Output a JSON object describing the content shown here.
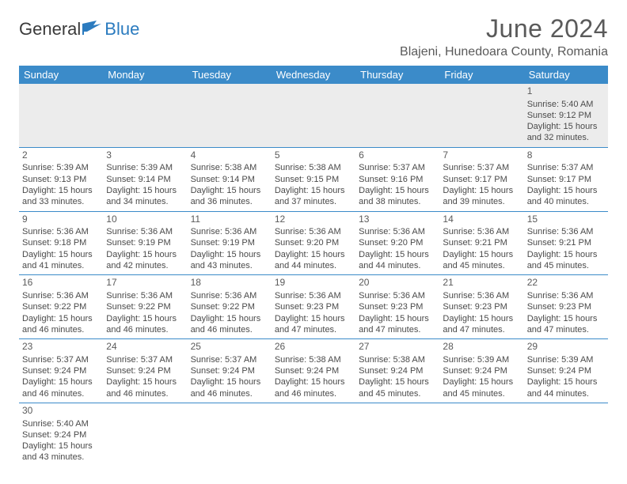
{
  "header": {
    "logo_general": "General",
    "logo_blue": "Blue",
    "month_title": "June 2024",
    "location": "Blajeni, Hunedoara County, Romania"
  },
  "colors": {
    "header_bg": "#3b8bc9",
    "header_text": "#ffffff",
    "text": "#4a4a4a",
    "title_text": "#5a5a5a",
    "first_row_bg": "#ececec",
    "row_border": "#3b8bc9",
    "logo_blue": "#2b7bbf"
  },
  "weekdays": [
    "Sunday",
    "Monday",
    "Tuesday",
    "Wednesday",
    "Thursday",
    "Friday",
    "Saturday"
  ],
  "weeks": [
    [
      null,
      null,
      null,
      null,
      null,
      null,
      {
        "day": "1",
        "sunrise": "Sunrise: 5:40 AM",
        "sunset": "Sunset: 9:12 PM",
        "dl1": "Daylight: 15 hours",
        "dl2": "and 32 minutes."
      }
    ],
    [
      {
        "day": "2",
        "sunrise": "Sunrise: 5:39 AM",
        "sunset": "Sunset: 9:13 PM",
        "dl1": "Daylight: 15 hours",
        "dl2": "and 33 minutes."
      },
      {
        "day": "3",
        "sunrise": "Sunrise: 5:39 AM",
        "sunset": "Sunset: 9:14 PM",
        "dl1": "Daylight: 15 hours",
        "dl2": "and 34 minutes."
      },
      {
        "day": "4",
        "sunrise": "Sunrise: 5:38 AM",
        "sunset": "Sunset: 9:14 PM",
        "dl1": "Daylight: 15 hours",
        "dl2": "and 36 minutes."
      },
      {
        "day": "5",
        "sunrise": "Sunrise: 5:38 AM",
        "sunset": "Sunset: 9:15 PM",
        "dl1": "Daylight: 15 hours",
        "dl2": "and 37 minutes."
      },
      {
        "day": "6",
        "sunrise": "Sunrise: 5:37 AM",
        "sunset": "Sunset: 9:16 PM",
        "dl1": "Daylight: 15 hours",
        "dl2": "and 38 minutes."
      },
      {
        "day": "7",
        "sunrise": "Sunrise: 5:37 AM",
        "sunset": "Sunset: 9:17 PM",
        "dl1": "Daylight: 15 hours",
        "dl2": "and 39 minutes."
      },
      {
        "day": "8",
        "sunrise": "Sunrise: 5:37 AM",
        "sunset": "Sunset: 9:17 PM",
        "dl1": "Daylight: 15 hours",
        "dl2": "and 40 minutes."
      }
    ],
    [
      {
        "day": "9",
        "sunrise": "Sunrise: 5:36 AM",
        "sunset": "Sunset: 9:18 PM",
        "dl1": "Daylight: 15 hours",
        "dl2": "and 41 minutes."
      },
      {
        "day": "10",
        "sunrise": "Sunrise: 5:36 AM",
        "sunset": "Sunset: 9:19 PM",
        "dl1": "Daylight: 15 hours",
        "dl2": "and 42 minutes."
      },
      {
        "day": "11",
        "sunrise": "Sunrise: 5:36 AM",
        "sunset": "Sunset: 9:19 PM",
        "dl1": "Daylight: 15 hours",
        "dl2": "and 43 minutes."
      },
      {
        "day": "12",
        "sunrise": "Sunrise: 5:36 AM",
        "sunset": "Sunset: 9:20 PM",
        "dl1": "Daylight: 15 hours",
        "dl2": "and 44 minutes."
      },
      {
        "day": "13",
        "sunrise": "Sunrise: 5:36 AM",
        "sunset": "Sunset: 9:20 PM",
        "dl1": "Daylight: 15 hours",
        "dl2": "and 44 minutes."
      },
      {
        "day": "14",
        "sunrise": "Sunrise: 5:36 AM",
        "sunset": "Sunset: 9:21 PM",
        "dl1": "Daylight: 15 hours",
        "dl2": "and 45 minutes."
      },
      {
        "day": "15",
        "sunrise": "Sunrise: 5:36 AM",
        "sunset": "Sunset: 9:21 PM",
        "dl1": "Daylight: 15 hours",
        "dl2": "and 45 minutes."
      }
    ],
    [
      {
        "day": "16",
        "sunrise": "Sunrise: 5:36 AM",
        "sunset": "Sunset: 9:22 PM",
        "dl1": "Daylight: 15 hours",
        "dl2": "and 46 minutes."
      },
      {
        "day": "17",
        "sunrise": "Sunrise: 5:36 AM",
        "sunset": "Sunset: 9:22 PM",
        "dl1": "Daylight: 15 hours",
        "dl2": "and 46 minutes."
      },
      {
        "day": "18",
        "sunrise": "Sunrise: 5:36 AM",
        "sunset": "Sunset: 9:22 PM",
        "dl1": "Daylight: 15 hours",
        "dl2": "and 46 minutes."
      },
      {
        "day": "19",
        "sunrise": "Sunrise: 5:36 AM",
        "sunset": "Sunset: 9:23 PM",
        "dl1": "Daylight: 15 hours",
        "dl2": "and 47 minutes."
      },
      {
        "day": "20",
        "sunrise": "Sunrise: 5:36 AM",
        "sunset": "Sunset: 9:23 PM",
        "dl1": "Daylight: 15 hours",
        "dl2": "and 47 minutes."
      },
      {
        "day": "21",
        "sunrise": "Sunrise: 5:36 AM",
        "sunset": "Sunset: 9:23 PM",
        "dl1": "Daylight: 15 hours",
        "dl2": "and 47 minutes."
      },
      {
        "day": "22",
        "sunrise": "Sunrise: 5:36 AM",
        "sunset": "Sunset: 9:23 PM",
        "dl1": "Daylight: 15 hours",
        "dl2": "and 47 minutes."
      }
    ],
    [
      {
        "day": "23",
        "sunrise": "Sunrise: 5:37 AM",
        "sunset": "Sunset: 9:24 PM",
        "dl1": "Daylight: 15 hours",
        "dl2": "and 46 minutes."
      },
      {
        "day": "24",
        "sunrise": "Sunrise: 5:37 AM",
        "sunset": "Sunset: 9:24 PM",
        "dl1": "Daylight: 15 hours",
        "dl2": "and 46 minutes."
      },
      {
        "day": "25",
        "sunrise": "Sunrise: 5:37 AM",
        "sunset": "Sunset: 9:24 PM",
        "dl1": "Daylight: 15 hours",
        "dl2": "and 46 minutes."
      },
      {
        "day": "26",
        "sunrise": "Sunrise: 5:38 AM",
        "sunset": "Sunset: 9:24 PM",
        "dl1": "Daylight: 15 hours",
        "dl2": "and 46 minutes."
      },
      {
        "day": "27",
        "sunrise": "Sunrise: 5:38 AM",
        "sunset": "Sunset: 9:24 PM",
        "dl1": "Daylight: 15 hours",
        "dl2": "and 45 minutes."
      },
      {
        "day": "28",
        "sunrise": "Sunrise: 5:39 AM",
        "sunset": "Sunset: 9:24 PM",
        "dl1": "Daylight: 15 hours",
        "dl2": "and 45 minutes."
      },
      {
        "day": "29",
        "sunrise": "Sunrise: 5:39 AM",
        "sunset": "Sunset: 9:24 PM",
        "dl1": "Daylight: 15 hours",
        "dl2": "and 44 minutes."
      }
    ],
    [
      {
        "day": "30",
        "sunrise": "Sunrise: 5:40 AM",
        "sunset": "Sunset: 9:24 PM",
        "dl1": "Daylight: 15 hours",
        "dl2": "and 43 minutes."
      },
      null,
      null,
      null,
      null,
      null,
      null
    ]
  ]
}
